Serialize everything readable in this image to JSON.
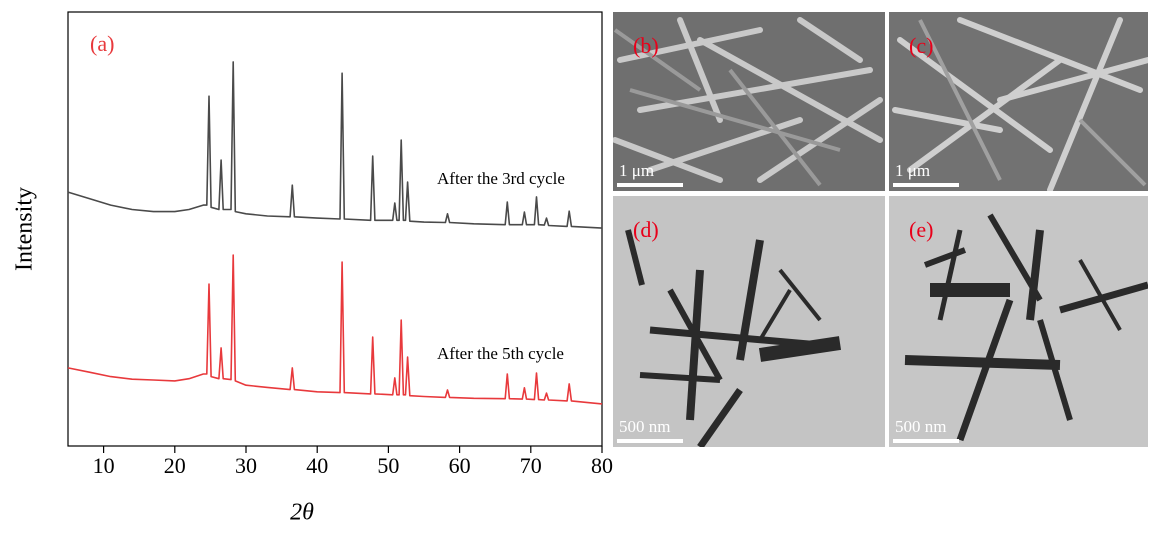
{
  "chart_data": {
    "type": "line",
    "label": "(a)",
    "xlabel": "2θ",
    "ylabel": "Intensity",
    "xlim": [
      5,
      80
    ],
    "ylim": [
      0,
      100
    ],
    "xticks": [
      10,
      20,
      30,
      40,
      50,
      60,
      70,
      80
    ],
    "x": [
      5,
      8,
      11,
      14,
      17,
      20,
      22,
      24,
      24.5,
      24.8,
      25.1,
      26.2,
      26.5,
      26.8,
      27.9,
      28.2,
      28.5,
      30,
      33,
      36.2,
      36.5,
      36.8,
      40,
      43.2,
      43.5,
      43.8,
      47.5,
      47.8,
      48.1,
      50.6,
      50.9,
      51.2,
      51.5,
      51.8,
      52.1,
      52.4,
      52.7,
      53.0,
      55,
      58.0,
      58.3,
      58.6,
      62,
      66.4,
      66.7,
      67.0,
      68.8,
      69.1,
      69.4,
      70.5,
      70.8,
      71.1,
      71.9,
      72.2,
      72.5,
      75.1,
      75.4,
      75.7,
      78,
      80
    ],
    "series": [
      {
        "name": "After the 3rd cycle",
        "color": "#4a4a4a",
        "values": [
          58.5,
          57,
          55.5,
          54.5,
          54,
          54,
          54.5,
          55.5,
          55.5,
          80.6,
          55,
          54.5,
          65.9,
          54.5,
          54.5,
          88.5,
          54,
          53.5,
          53,
          52.8,
          60.1,
          52.8,
          52.5,
          52.3,
          85.9,
          52.3,
          52,
          66.8,
          52,
          52,
          56,
          52,
          52,
          70.5,
          52,
          52,
          60.8,
          51.8,
          51.6,
          51.5,
          53.5,
          51.5,
          51.2,
          51,
          56.2,
          51,
          51,
          53.9,
          51,
          51,
          57.4,
          51,
          50.9,
          52.5,
          50.8,
          50.6,
          54.1,
          50.6,
          50.4,
          50.2
        ]
      },
      {
        "name": "After the 5th cycle",
        "color": "#e8393c",
        "values": [
          18,
          17,
          16,
          15.4,
          15.2,
          15,
          15.5,
          16.6,
          16.6,
          37.3,
          16,
          15.5,
          22.6,
          15.5,
          15.3,
          44,
          15,
          14,
          13.5,
          13,
          18,
          13,
          12.5,
          12.3,
          42.4,
          12.3,
          12,
          25.1,
          12,
          11.8,
          15.7,
          11.8,
          11.8,
          29,
          11.8,
          11.8,
          20.5,
          11.6,
          11.4,
          11.2,
          12.9,
          11.2,
          11,
          10.9,
          16.6,
          10.9,
          10.8,
          13.4,
          10.8,
          10.7,
          16.8,
          10.7,
          10.6,
          12.2,
          10.6,
          10.4,
          14.3,
          10.4,
          10,
          9.7
        ]
      }
    ]
  },
  "images": [
    {
      "label": "(b)",
      "scale": "1 μm"
    },
    {
      "label": "(c)",
      "scale": "1 μm"
    },
    {
      "label": "(d)",
      "scale": "500 nm"
    },
    {
      "label": "(e)",
      "scale": "500 nm"
    }
  ]
}
